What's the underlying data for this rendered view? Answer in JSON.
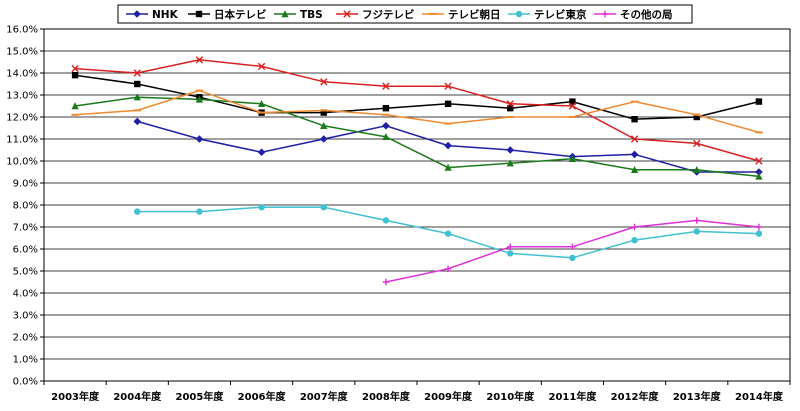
{
  "chart_data": {
    "type": "line",
    "categories": [
      "2003年度",
      "2004年度",
      "2005年度",
      "2006年度",
      "2007年度",
      "2008年度",
      "2009年度",
      "2010年度",
      "2011年度",
      "2012年度",
      "2013年度",
      "2014年度"
    ],
    "ylim": [
      0,
      16
    ],
    "ytick_step": 1,
    "ytick_labels": [
      "0.0%",
      "1.0%",
      "2.0%",
      "3.0%",
      "4.0%",
      "5.0%",
      "6.0%",
      "7.0%",
      "8.0%",
      "9.0%",
      "10.0%",
      "11.0%",
      "12.0%",
      "13.0%",
      "14.0%",
      "15.0%",
      "16.0%"
    ],
    "grid": true,
    "legend_position": "top",
    "series": [
      {
        "name": "NHK",
        "color": "#1f1fa8",
        "marker": "diamond",
        "values": [
          null,
          11.8,
          11.0,
          10.4,
          11.0,
          11.6,
          10.7,
          10.5,
          10.2,
          10.3,
          9.5,
          9.5
        ]
      },
      {
        "name": "日本テレビ",
        "color": "#000000",
        "marker": "square",
        "values": [
          13.9,
          13.5,
          12.9,
          12.2,
          12.2,
          12.4,
          12.6,
          12.4,
          12.7,
          11.9,
          12.0,
          12.7
        ]
      },
      {
        "name": "TBS",
        "color": "#1a7a1a",
        "marker": "triangle",
        "values": [
          12.5,
          12.9,
          12.8,
          12.6,
          11.6,
          11.1,
          9.7,
          9.9,
          10.1,
          9.6,
          9.6,
          9.3
        ]
      },
      {
        "name": "フジテレビ",
        "color": "#d92020",
        "marker": "cross",
        "values": [
          14.2,
          14.0,
          14.6,
          14.3,
          13.6,
          13.4,
          13.4,
          12.6,
          12.5,
          11.0,
          10.8,
          10.0
        ]
      },
      {
        "name": "テレビ朝日",
        "color": "#f08a30",
        "marker": "dash",
        "values": [
          12.1,
          12.3,
          13.2,
          12.2,
          12.3,
          12.1,
          11.7,
          12.0,
          12.0,
          12.7,
          12.1,
          11.3
        ]
      },
      {
        "name": "テレビ東京",
        "color": "#40c0d0",
        "marker": "circle",
        "values": [
          null,
          7.7,
          7.7,
          7.9,
          7.9,
          7.3,
          6.7,
          5.8,
          5.6,
          6.4,
          6.8,
          6.7
        ]
      },
      {
        "name": "その他の局",
        "color": "#e030d8",
        "marker": "plus",
        "values": [
          null,
          null,
          null,
          null,
          null,
          4.5,
          5.1,
          6.1,
          6.1,
          7.0,
          7.3,
          7.0
        ]
      }
    ]
  }
}
